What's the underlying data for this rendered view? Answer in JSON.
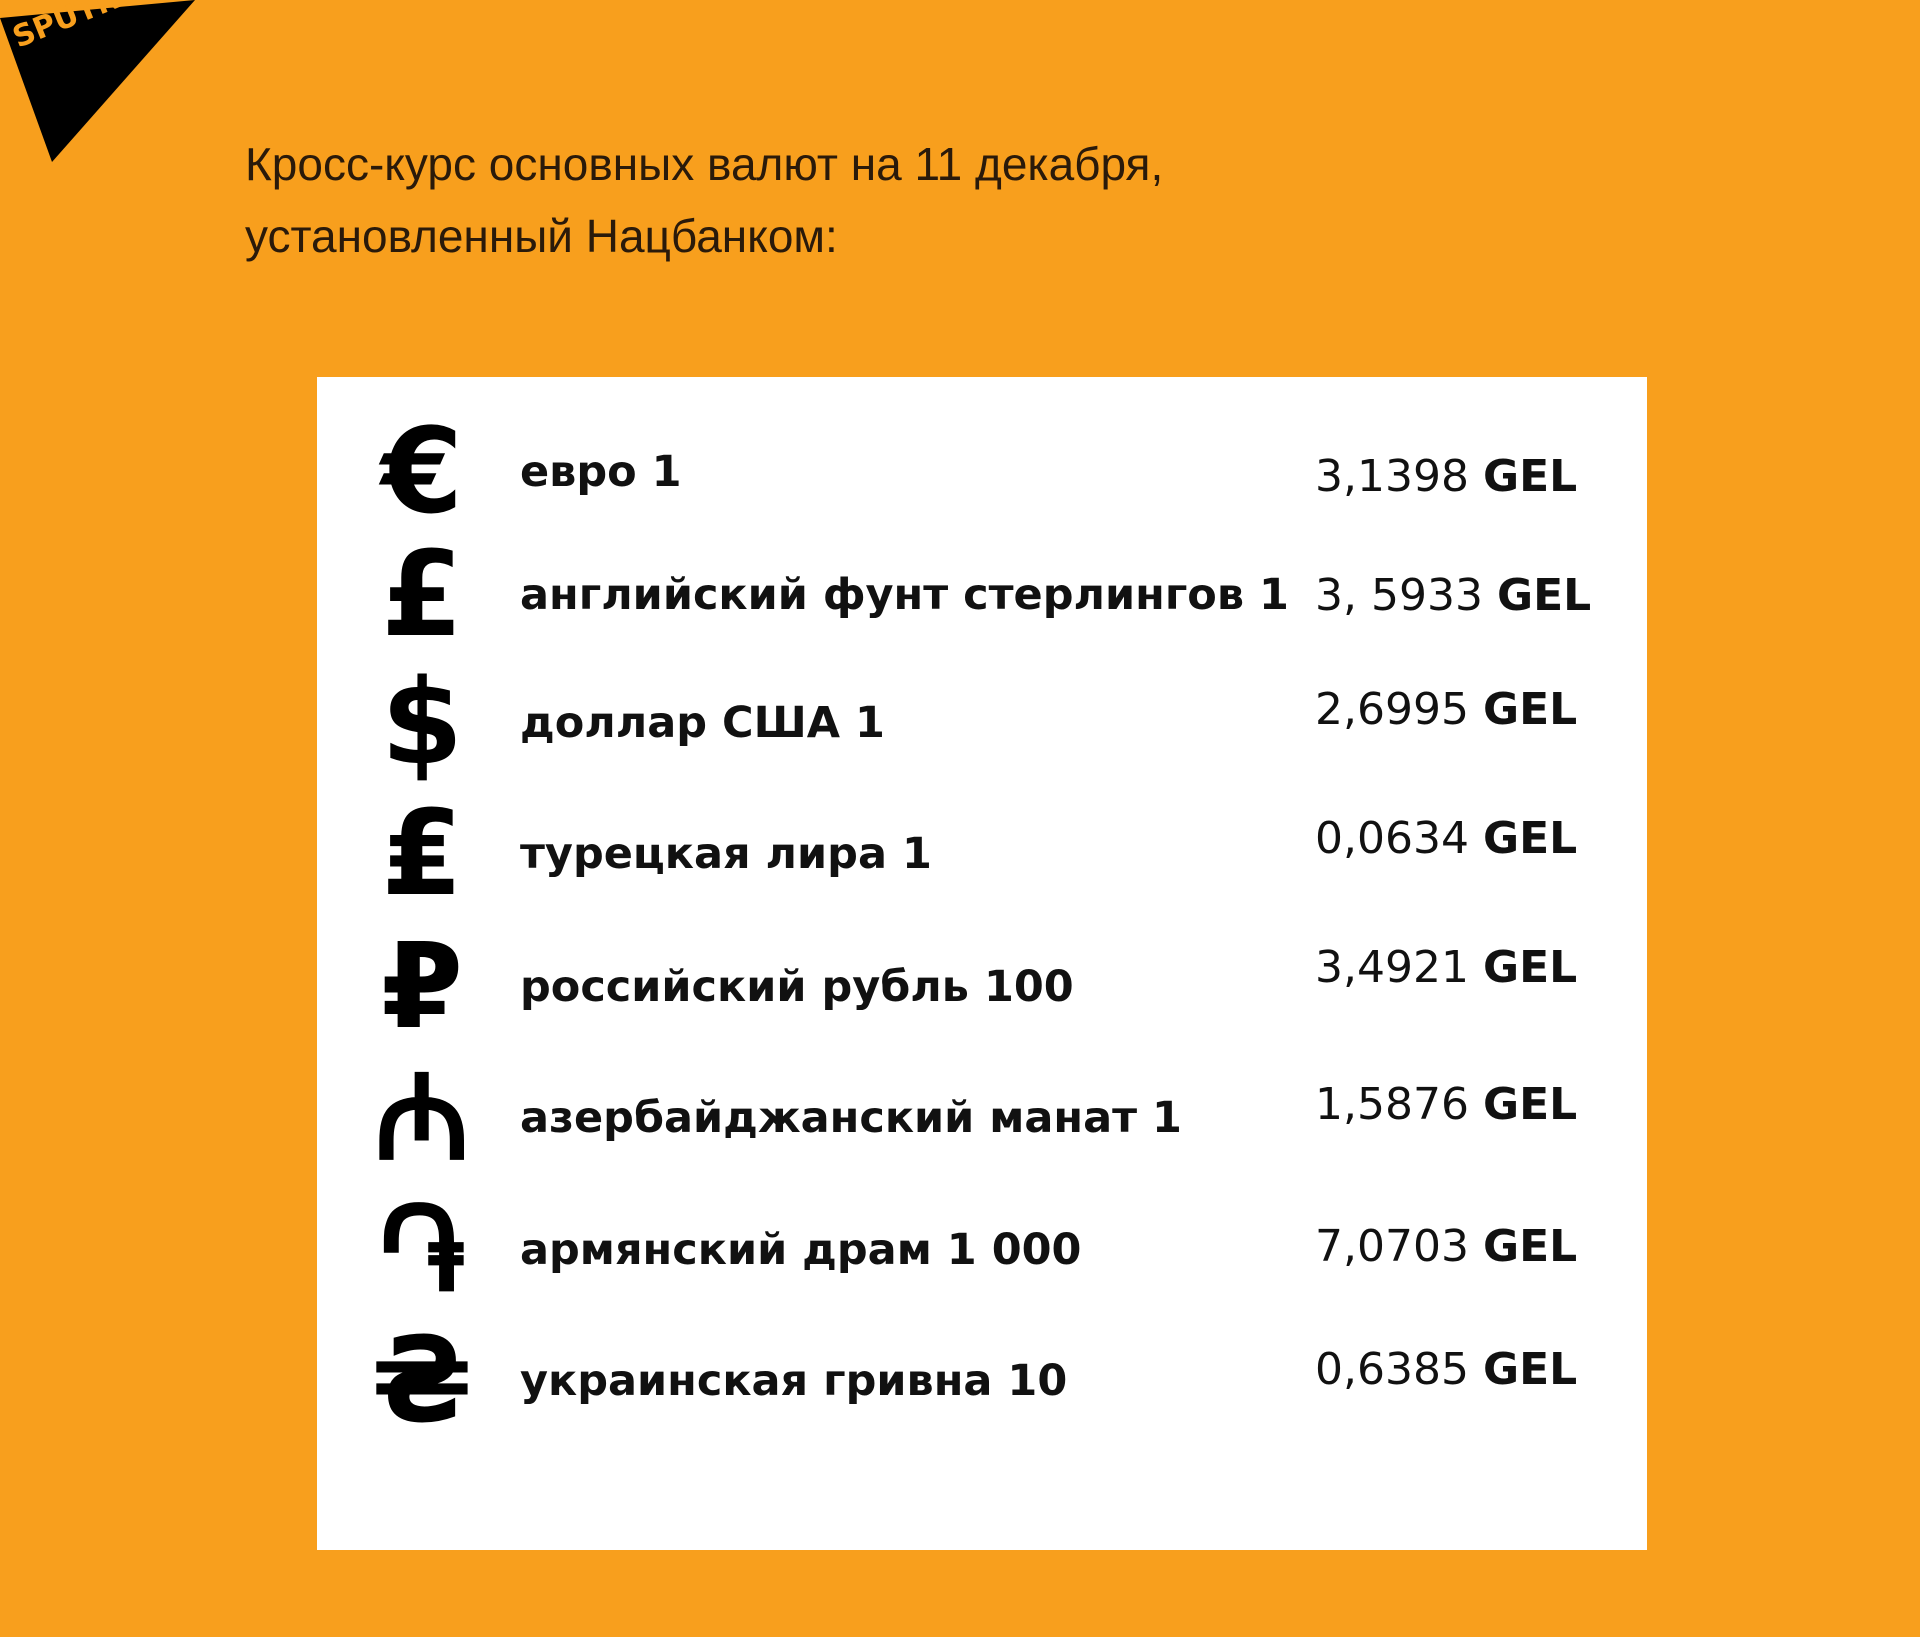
{
  "logo": {
    "text": "SPUTNIK"
  },
  "title": {
    "line1": "Кросс-курс основных валют на 11 декабря,",
    "line2": "установленный Нацбанком:"
  },
  "colors": {
    "background": "#F89F1D",
    "card": "#FFFFFF",
    "text": "#111111"
  },
  "rates": [
    {
      "symbol": "€",
      "icon": "euro-icon",
      "label": "евро 1",
      "value": "3,1398",
      "unit": "GEL"
    },
    {
      "symbol": "£",
      "icon": "pound-icon",
      "label": "английский фунт стерлингов 1",
      "value": "3, 5933",
      "unit": "GEL"
    },
    {
      "symbol": "$",
      "icon": "dollar-icon",
      "label": "доллар США 1",
      "value": "2,6995",
      "unit": "GEL"
    },
    {
      "symbol": "₤",
      "icon": "lira-icon",
      "label": "турецкая лира 1",
      "value": "0,0634",
      "unit": "GEL"
    },
    {
      "symbol": "₽",
      "icon": "ruble-icon",
      "label": "российский рубль 100",
      "value": "3,4921",
      "unit": "GEL"
    },
    {
      "symbol": "₼",
      "icon": "manat-icon",
      "label": "азербайджанский манат 1",
      "value": "1,5876",
      "unit": "GEL"
    },
    {
      "symbol": "֏",
      "icon": "dram-icon",
      "label": "армянский драм 1 000",
      "value": "7,0703",
      "unit": "GEL"
    },
    {
      "symbol": "₴",
      "icon": "hryvnia-icon",
      "label": "украинская гривна 10",
      "value": "0,6385",
      "unit": "GEL"
    }
  ]
}
